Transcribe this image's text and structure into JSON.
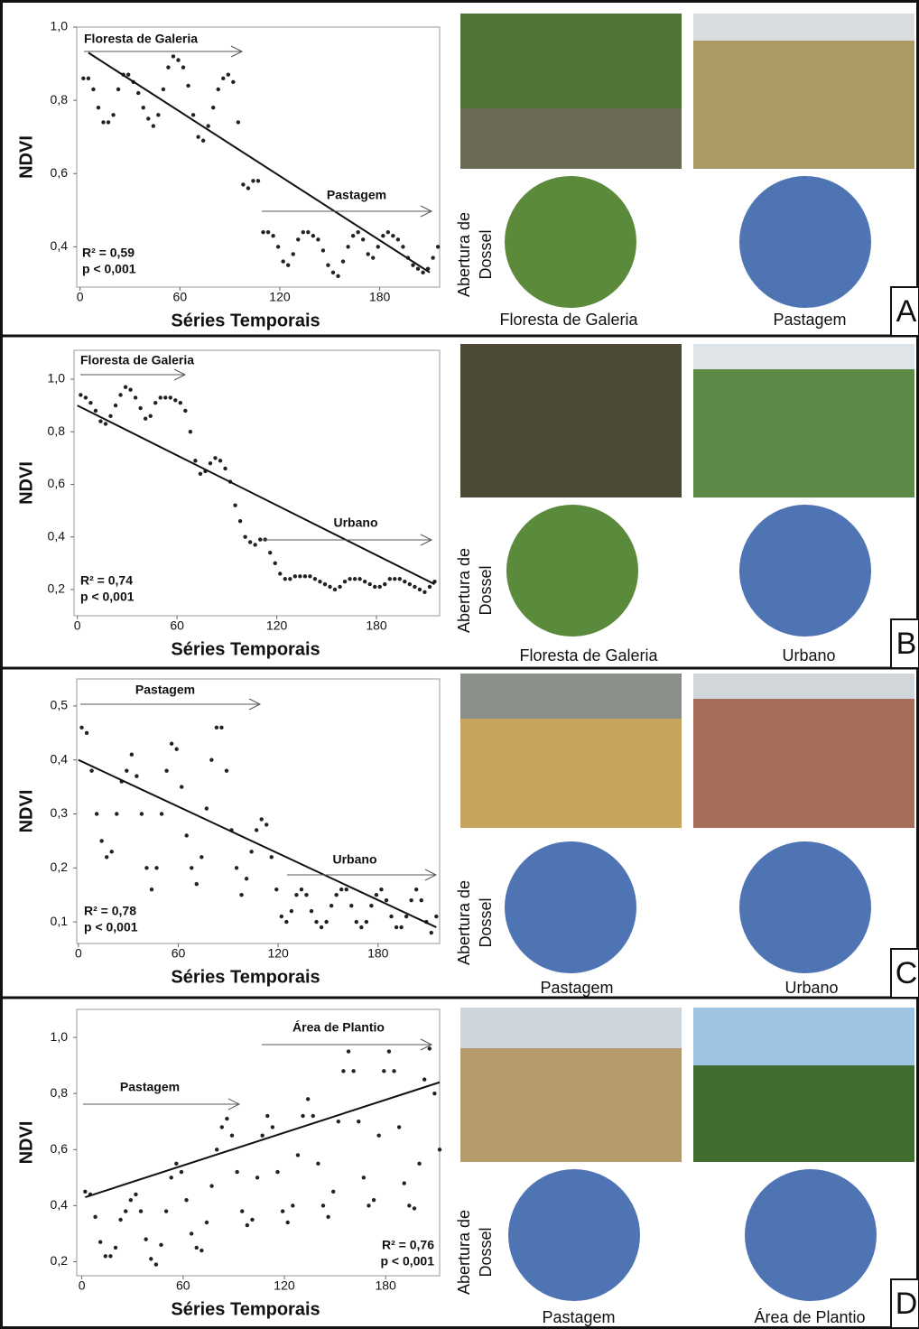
{
  "chart_data": [
    {
      "type": "scatter",
      "y_label": "NDVI",
      "x_label": "Séries Temporais",
      "color": "#222222",
      "x": [
        2,
        5,
        8,
        11,
        14,
        17,
        20,
        23,
        26,
        29,
        32,
        35,
        38,
        41,
        44,
        47,
        50,
        53,
        56,
        59,
        62,
        65,
        68,
        71,
        74,
        77,
        80,
        83,
        86,
        89,
        92,
        95,
        98,
        101,
        104,
        107,
        110,
        113,
        116,
        119,
        122,
        125,
        128,
        131,
        134,
        137,
        140,
        143,
        146,
        149,
        152,
        155,
        158,
        161,
        164,
        167,
        170,
        173,
        176,
        179,
        182,
        185,
        188,
        191,
        194,
        197,
        200,
        203,
        206,
        209,
        212,
        215
      ],
      "y": [
        0.86,
        0.86,
        0.83,
        0.78,
        0.74,
        0.74,
        0.76,
        0.83,
        0.87,
        0.87,
        0.85,
        0.82,
        0.78,
        0.75,
        0.73,
        0.76,
        0.83,
        0.89,
        0.92,
        0.91,
        0.89,
        0.84,
        0.76,
        0.7,
        0.69,
        0.73,
        0.78,
        0.83,
        0.86,
        0.87,
        0.85,
        0.74,
        0.57,
        0.56,
        0.58,
        0.58,
        0.44,
        0.44,
        0.43,
        0.4,
        0.36,
        0.35,
        0.38,
        0.42,
        0.44,
        0.44,
        0.43,
        0.42,
        0.39,
        0.35,
        0.33,
        0.32,
        0.36,
        0.4,
        0.43,
        0.44,
        0.42,
        0.38,
        0.37,
        0.4,
        0.43,
        0.44,
        0.43,
        0.42,
        0.4,
        0.37,
        0.35,
        0.34,
        0.33,
        0.34,
        0.37,
        0.4
      ],
      "trend": {
        "x": [
          5,
          210
        ],
        "y": [
          0.93,
          0.33
        ]
      },
      "xlim": [
        -2,
        216
      ],
      "ylim": [
        0.29,
        1.0
      ],
      "xticks": [
        0,
        60,
        120,
        180
      ],
      "yticks": [
        {
          "value": 0.4,
          "label": "0,4"
        },
        {
          "value": 0.6,
          "label": "0,6"
        },
        {
          "value": 0.8,
          "label": "0,8"
        },
        {
          "value": 1.0,
          "label": "1,0"
        }
      ],
      "annotations": [
        "Floresta de Galeria",
        "Pastagem"
      ],
      "stats": [
        "R² = 0,59",
        "p < 0,001"
      ]
    },
    {
      "type": "scatter",
      "y_label": "NDVI",
      "x_label": "Séries Temporais",
      "color": "#222222",
      "x": [
        2,
        5,
        8,
        11,
        14,
        17,
        20,
        23,
        26,
        29,
        32,
        35,
        38,
        41,
        44,
        47,
        50,
        53,
        56,
        59,
        62,
        65,
        68,
        71,
        74,
        77,
        80,
        83,
        86,
        89,
        92,
        95,
        98,
        101,
        104,
        107,
        110,
        113,
        116,
        119,
        122,
        125,
        128,
        131,
        134,
        137,
        140,
        143,
        146,
        149,
        152,
        155,
        158,
        161,
        164,
        167,
        170,
        173,
        176,
        179,
        182,
        185,
        188,
        191,
        194,
        197,
        200,
        203,
        206,
        209,
        212,
        215
      ],
      "y": [
        0.94,
        0.93,
        0.91,
        0.88,
        0.84,
        0.83,
        0.86,
        0.9,
        0.94,
        0.97,
        0.96,
        0.93,
        0.89,
        0.85,
        0.86,
        0.91,
        0.93,
        0.93,
        0.93,
        0.92,
        0.91,
        0.88,
        0.8,
        0.69,
        0.64,
        0.65,
        0.68,
        0.7,
        0.69,
        0.66,
        0.61,
        0.52,
        0.46,
        0.4,
        0.38,
        0.37,
        0.39,
        0.39,
        0.34,
        0.3,
        0.26,
        0.24,
        0.24,
        0.25,
        0.25,
        0.25,
        0.25,
        0.24,
        0.23,
        0.22,
        0.21,
        0.2,
        0.21,
        0.23,
        0.24,
        0.24,
        0.24,
        0.23,
        0.22,
        0.21,
        0.21,
        0.22,
        0.24,
        0.24,
        0.24,
        0.23,
        0.22,
        0.21,
        0.2,
        0.19,
        0.21,
        0.23
      ],
      "trend": {
        "x": [
          0,
          215
        ],
        "y": [
          0.9,
          0.22
        ]
      },
      "xlim": [
        -2,
        218
      ],
      "ylim": [
        0.1,
        1.11
      ],
      "xticks": [
        0,
        60,
        120,
        180
      ],
      "yticks": [
        {
          "value": 0.2,
          "label": "0,2"
        },
        {
          "value": 0.4,
          "label": "0,4"
        },
        {
          "value": 0.6,
          "label": "0,6"
        },
        {
          "value": 0.8,
          "label": "0,8"
        },
        {
          "value": 1.0,
          "label": "1,0"
        }
      ],
      "annotations": [
        "Floresta de Galeria",
        "Urbano"
      ],
      "stats": [
        "R² = 0,74",
        "p < 0,001"
      ]
    },
    {
      "type": "scatter",
      "y_label": "NDVI",
      "x_label": "Séries Temporais",
      "color": "#222222",
      "x": [
        2,
        5,
        8,
        11,
        14,
        17,
        20,
        23,
        26,
        29,
        32,
        35,
        38,
        41,
        44,
        47,
        50,
        53,
        56,
        59,
        62,
        65,
        68,
        71,
        74,
        77,
        80,
        83,
        86,
        89,
        92,
        95,
        98,
        101,
        104,
        107,
        110,
        113,
        116,
        119,
        122,
        125,
        128,
        131,
        134,
        137,
        140,
        143,
        146,
        149,
        152,
        155,
        158,
        161,
        164,
        167,
        170,
        173,
        176,
        179,
        182,
        185,
        188,
        191,
        194,
        197,
        200,
        203,
        206,
        209,
        212,
        215
      ],
      "y": [
        0.46,
        0.45,
        0.38,
        0.3,
        0.25,
        0.22,
        0.23,
        0.3,
        0.36,
        0.38,
        0.41,
        0.37,
        0.3,
        0.2,
        0.16,
        0.2,
        0.3,
        0.38,
        0.43,
        0.42,
        0.35,
        0.26,
        0.2,
        0.17,
        0.22,
        0.31,
        0.4,
        0.46,
        0.46,
        0.38,
        0.27,
        0.2,
        0.15,
        0.18,
        0.23,
        0.27,
        0.29,
        0.28,
        0.22,
        0.16,
        0.11,
        0.1,
        0.12,
        0.15,
        0.16,
        0.15,
        0.12,
        0.1,
        0.09,
        0.1,
        0.13,
        0.15,
        0.16,
        0.16,
        0.13,
        0.1,
        0.09,
        0.1,
        0.13,
        0.15,
        0.16,
        0.14,
        0.11,
        0.09,
        0.09,
        0.11,
        0.14,
        0.16,
        0.14,
        0.1,
        0.08,
        0.11
      ],
      "trend": {
        "x": [
          0,
          215
        ],
        "y": [
          0.4,
          0.09
        ]
      },
      "xlim": [
        -1,
        217
      ],
      "ylim": [
        0.06,
        0.55
      ],
      "xticks": [
        0,
        60,
        120,
        180
      ],
      "yticks": [
        {
          "value": 0.1,
          "label": "0,1"
        },
        {
          "value": 0.2,
          "label": "0,2"
        },
        {
          "value": 0.3,
          "label": "0,3"
        },
        {
          "value": 0.4,
          "label": "0,4"
        },
        {
          "value": 0.5,
          "label": "0,5"
        }
      ],
      "annotations": [
        "Pastagem",
        "Urbano"
      ],
      "stats": [
        "R² = 0,78",
        "p < 0,001"
      ]
    },
    {
      "type": "scatter",
      "y_label": "NDVI",
      "x_label": "Séries Temporais",
      "color": "#222222",
      "x": [
        2,
        5,
        8,
        11,
        14,
        17,
        20,
        23,
        26,
        29,
        32,
        35,
        38,
        41,
        44,
        47,
        50,
        53,
        56,
        59,
        62,
        65,
        68,
        71,
        74,
        77,
        80,
        83,
        86,
        89,
        92,
        95,
        98,
        101,
        104,
        107,
        110,
        113,
        116,
        119,
        122,
        125,
        128,
        131,
        134,
        137,
        140,
        143,
        146,
        149,
        152,
        155,
        158,
        161,
        164,
        167,
        170,
        173,
        176,
        179,
        182,
        185,
        188,
        191,
        194,
        197,
        200,
        203,
        206,
        209,
        212
      ],
      "y": [
        0.45,
        0.44,
        0.36,
        0.27,
        0.22,
        0.22,
        0.25,
        0.35,
        0.38,
        0.42,
        0.44,
        0.38,
        0.28,
        0.21,
        0.19,
        0.26,
        0.38,
        0.5,
        0.55,
        0.52,
        0.42,
        0.3,
        0.25,
        0.24,
        0.34,
        0.47,
        0.6,
        0.68,
        0.71,
        0.65,
        0.52,
        0.38,
        0.33,
        0.35,
        0.5,
        0.65,
        0.72,
        0.68,
        0.52,
        0.38,
        0.34,
        0.4,
        0.58,
        0.72,
        0.78,
        0.72,
        0.55,
        0.4,
        0.36,
        0.45,
        0.7,
        0.88,
        0.95,
        0.88,
        0.7,
        0.5,
        0.4,
        0.42,
        0.65,
        0.88,
        0.95,
        0.88,
        0.68,
        0.48,
        0.4,
        0.39,
        0.55,
        0.85,
        0.96,
        0.8,
        0.6
      ],
      "trend": {
        "x": [
          2,
          212
        ],
        "y": [
          0.43,
          0.84
        ]
      },
      "xlim": [
        -3,
        212
      ],
      "ylim": [
        0.15,
        1.1
      ],
      "xticks": [
        0,
        60,
        120,
        180
      ],
      "yticks": [
        {
          "value": 0.2,
          "label": "0,2"
        },
        {
          "value": 0.4,
          "label": "0,4"
        },
        {
          "value": 0.6,
          "label": "0,6"
        },
        {
          "value": 0.8,
          "label": "0,8"
        },
        {
          "value": 1.0,
          "label": "1,0"
        }
      ],
      "annotations": [
        "Área de Plantio",
        "Pastagem"
      ],
      "stats": [
        "R² = 0,76",
        "p < 0,001"
      ]
    }
  ],
  "panels": [
    {
      "letter": "A",
      "canopy_label": [
        "Abertura de",
        "Dossel"
      ],
      "captions": [
        "Floresta de Galeria",
        "Pastagem"
      ]
    },
    {
      "letter": "B",
      "canopy_label": [
        "Abertura de",
        "Dossel"
      ],
      "captions": [
        "Floresta de Galeria",
        "Urbano"
      ]
    },
    {
      "letter": "C",
      "canopy_label": [
        "Abertura de",
        "Dossel"
      ],
      "captions": [
        "Pastagem",
        "Urbano"
      ]
    },
    {
      "letter": "D",
      "canopy_label": [
        "Abertura de",
        "Dossel"
      ],
      "captions": [
        "Pastagem",
        "Área de Plantio"
      ]
    }
  ]
}
